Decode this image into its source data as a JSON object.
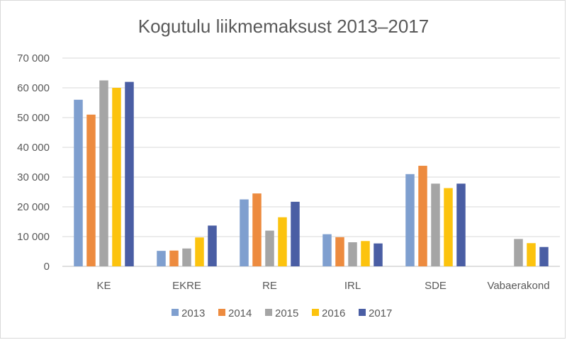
{
  "chart_data": {
    "type": "bar",
    "title": "Kogutulu liikmemaksust 2013–2017",
    "xlabel": "",
    "ylabel": "",
    "ylim": [
      0,
      70000
    ],
    "yticks": [
      0,
      10000,
      20000,
      30000,
      40000,
      50000,
      60000,
      70000
    ],
    "ytick_labels": [
      "0",
      "10 000",
      "20 000",
      "30 000",
      "40 000",
      "50 000",
      "60 000",
      "70 000"
    ],
    "grid": true,
    "legend_position": "bottom",
    "categories": [
      "KE",
      "EKRE",
      "RE",
      "IRL",
      "SDE",
      "Vabaerakond"
    ],
    "series": [
      {
        "name": "2013",
        "color": "#7f9fcf",
        "values": [
          56000,
          5200,
          22500,
          10800,
          31000,
          null
        ]
      },
      {
        "name": "2014",
        "color": "#ed8b3f",
        "values": [
          51000,
          5300,
          24500,
          9800,
          33800,
          null
        ]
      },
      {
        "name": "2015",
        "color": "#a5a5a5",
        "values": [
          62500,
          6000,
          12000,
          8100,
          27800,
          9200
        ]
      },
      {
        "name": "2016",
        "color": "#fcc30e",
        "values": [
          60000,
          9700,
          16500,
          8500,
          26300,
          7800
        ]
      },
      {
        "name": "2017",
        "color": "#4a5ea4",
        "values": [
          62000,
          13700,
          21700,
          7700,
          27800,
          6500
        ]
      }
    ]
  }
}
